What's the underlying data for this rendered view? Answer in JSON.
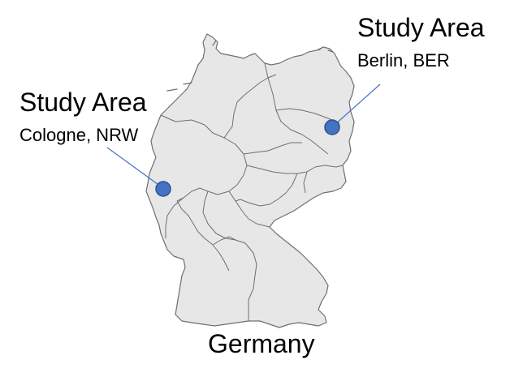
{
  "colors": {
    "land": "#e7e7e7",
    "border": "#6f6f6f",
    "marker_fill": "#4472c4",
    "marker_stroke": "#2f528f",
    "leader_line": "#4472c4"
  },
  "map": {
    "country_label": "Germany"
  },
  "markers": [
    {
      "id": "cologne",
      "title": "Study Area",
      "subtitle": "Cologne, NRW"
    },
    {
      "id": "berlin",
      "title": "Study Area",
      "subtitle": "Berlin, BER"
    }
  ]
}
